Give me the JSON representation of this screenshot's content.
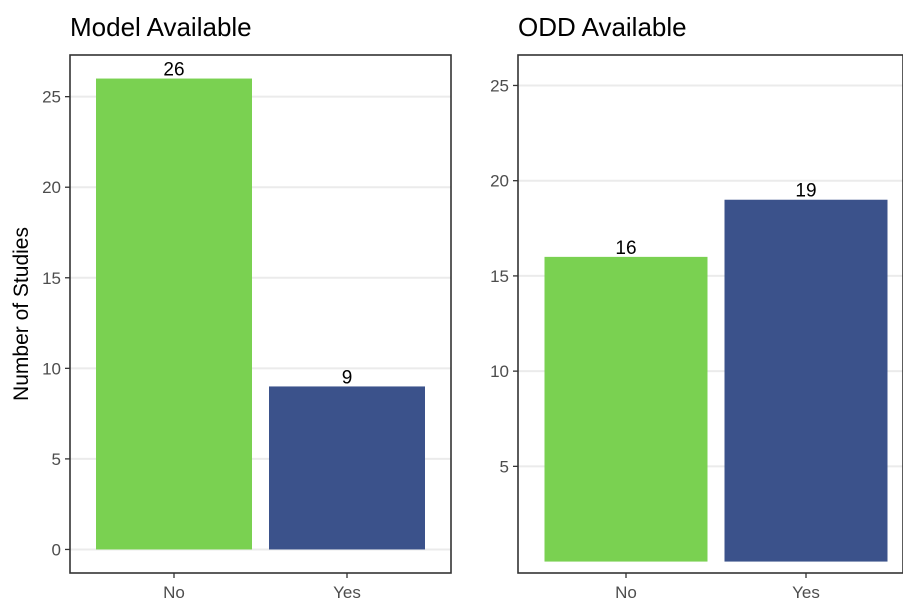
{
  "chart_data": [
    {
      "type": "bar",
      "title": "Model Available",
      "xlabel": "",
      "ylabel": "Number of Studies",
      "categories": [
        "No",
        "Yes"
      ],
      "values": [
        26,
        9
      ],
      "data_labels": [
        "26",
        "9"
      ],
      "bar_colors": [
        "#7ad151",
        "#3b528b"
      ],
      "ylim": [
        -1.3,
        27.3
      ],
      "yticks": [
        0,
        5,
        10,
        15,
        20,
        25
      ],
      "ytick_labels": [
        "0",
        "5",
        "10",
        "15",
        "20",
        "25"
      ],
      "grid": true,
      "legend": "none"
    },
    {
      "type": "bar",
      "title": "ODD Available",
      "xlabel": "",
      "ylabel": "",
      "categories": [
        "No",
        "Yes"
      ],
      "values": [
        16,
        19
      ],
      "data_labels": [
        "16",
        "19"
      ],
      "bar_colors": [
        "#7ad151",
        "#3b528b"
      ],
      "ylim": [
        -0.6,
        26.6
      ],
      "yticks": [
        5,
        10,
        15,
        20,
        25
      ],
      "ytick_labels": [
        "5",
        "10",
        "15",
        "20",
        "25"
      ],
      "grid": true,
      "legend": "none"
    }
  ]
}
